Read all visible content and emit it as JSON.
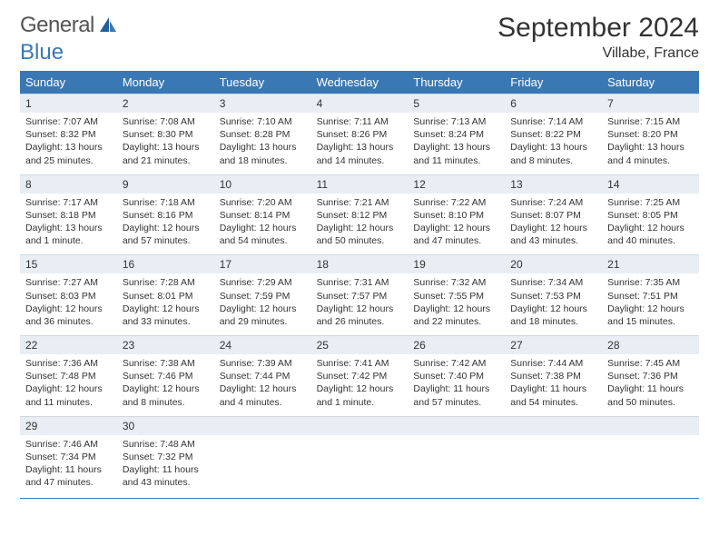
{
  "logo": {
    "text1": "General",
    "text2": "Blue"
  },
  "title": "September 2024",
  "location": "Villabe, France",
  "colors": {
    "header_bg": "#3a78b5",
    "daynum_bg": "#e8eef3",
    "text": "#333333",
    "rule": "#3a78b5"
  },
  "dow": [
    "Sunday",
    "Monday",
    "Tuesday",
    "Wednesday",
    "Thursday",
    "Friday",
    "Saturday"
  ],
  "days": [
    {
      "n": "1",
      "sr": "Sunrise: 7:07 AM",
      "ss": "Sunset: 8:32 PM",
      "dl": "Daylight: 13 hours and 25 minutes."
    },
    {
      "n": "2",
      "sr": "Sunrise: 7:08 AM",
      "ss": "Sunset: 8:30 PM",
      "dl": "Daylight: 13 hours and 21 minutes."
    },
    {
      "n": "3",
      "sr": "Sunrise: 7:10 AM",
      "ss": "Sunset: 8:28 PM",
      "dl": "Daylight: 13 hours and 18 minutes."
    },
    {
      "n": "4",
      "sr": "Sunrise: 7:11 AM",
      "ss": "Sunset: 8:26 PM",
      "dl": "Daylight: 13 hours and 14 minutes."
    },
    {
      "n": "5",
      "sr": "Sunrise: 7:13 AM",
      "ss": "Sunset: 8:24 PM",
      "dl": "Daylight: 13 hours and 11 minutes."
    },
    {
      "n": "6",
      "sr": "Sunrise: 7:14 AM",
      "ss": "Sunset: 8:22 PM",
      "dl": "Daylight: 13 hours and 8 minutes."
    },
    {
      "n": "7",
      "sr": "Sunrise: 7:15 AM",
      "ss": "Sunset: 8:20 PM",
      "dl": "Daylight: 13 hours and 4 minutes."
    },
    {
      "n": "8",
      "sr": "Sunrise: 7:17 AM",
      "ss": "Sunset: 8:18 PM",
      "dl": "Daylight: 13 hours and 1 minute."
    },
    {
      "n": "9",
      "sr": "Sunrise: 7:18 AM",
      "ss": "Sunset: 8:16 PM",
      "dl": "Daylight: 12 hours and 57 minutes."
    },
    {
      "n": "10",
      "sr": "Sunrise: 7:20 AM",
      "ss": "Sunset: 8:14 PM",
      "dl": "Daylight: 12 hours and 54 minutes."
    },
    {
      "n": "11",
      "sr": "Sunrise: 7:21 AM",
      "ss": "Sunset: 8:12 PM",
      "dl": "Daylight: 12 hours and 50 minutes."
    },
    {
      "n": "12",
      "sr": "Sunrise: 7:22 AM",
      "ss": "Sunset: 8:10 PM",
      "dl": "Daylight: 12 hours and 47 minutes."
    },
    {
      "n": "13",
      "sr": "Sunrise: 7:24 AM",
      "ss": "Sunset: 8:07 PM",
      "dl": "Daylight: 12 hours and 43 minutes."
    },
    {
      "n": "14",
      "sr": "Sunrise: 7:25 AM",
      "ss": "Sunset: 8:05 PM",
      "dl": "Daylight: 12 hours and 40 minutes."
    },
    {
      "n": "15",
      "sr": "Sunrise: 7:27 AM",
      "ss": "Sunset: 8:03 PM",
      "dl": "Daylight: 12 hours and 36 minutes."
    },
    {
      "n": "16",
      "sr": "Sunrise: 7:28 AM",
      "ss": "Sunset: 8:01 PM",
      "dl": "Daylight: 12 hours and 33 minutes."
    },
    {
      "n": "17",
      "sr": "Sunrise: 7:29 AM",
      "ss": "Sunset: 7:59 PM",
      "dl": "Daylight: 12 hours and 29 minutes."
    },
    {
      "n": "18",
      "sr": "Sunrise: 7:31 AM",
      "ss": "Sunset: 7:57 PM",
      "dl": "Daylight: 12 hours and 26 minutes."
    },
    {
      "n": "19",
      "sr": "Sunrise: 7:32 AM",
      "ss": "Sunset: 7:55 PM",
      "dl": "Daylight: 12 hours and 22 minutes."
    },
    {
      "n": "20",
      "sr": "Sunrise: 7:34 AM",
      "ss": "Sunset: 7:53 PM",
      "dl": "Daylight: 12 hours and 18 minutes."
    },
    {
      "n": "21",
      "sr": "Sunrise: 7:35 AM",
      "ss": "Sunset: 7:51 PM",
      "dl": "Daylight: 12 hours and 15 minutes."
    },
    {
      "n": "22",
      "sr": "Sunrise: 7:36 AM",
      "ss": "Sunset: 7:48 PM",
      "dl": "Daylight: 12 hours and 11 minutes."
    },
    {
      "n": "23",
      "sr": "Sunrise: 7:38 AM",
      "ss": "Sunset: 7:46 PM",
      "dl": "Daylight: 12 hours and 8 minutes."
    },
    {
      "n": "24",
      "sr": "Sunrise: 7:39 AM",
      "ss": "Sunset: 7:44 PM",
      "dl": "Daylight: 12 hours and 4 minutes."
    },
    {
      "n": "25",
      "sr": "Sunrise: 7:41 AM",
      "ss": "Sunset: 7:42 PM",
      "dl": "Daylight: 12 hours and 1 minute."
    },
    {
      "n": "26",
      "sr": "Sunrise: 7:42 AM",
      "ss": "Sunset: 7:40 PM",
      "dl": "Daylight: 11 hours and 57 minutes."
    },
    {
      "n": "27",
      "sr": "Sunrise: 7:44 AM",
      "ss": "Sunset: 7:38 PM",
      "dl": "Daylight: 11 hours and 54 minutes."
    },
    {
      "n": "28",
      "sr": "Sunrise: 7:45 AM",
      "ss": "Sunset: 7:36 PM",
      "dl": "Daylight: 11 hours and 50 minutes."
    },
    {
      "n": "29",
      "sr": "Sunrise: 7:46 AM",
      "ss": "Sunset: 7:34 PM",
      "dl": "Daylight: 11 hours and 47 minutes."
    },
    {
      "n": "30",
      "sr": "Sunrise: 7:48 AM",
      "ss": "Sunset: 7:32 PM",
      "dl": "Daylight: 11 hours and 43 minutes."
    }
  ]
}
